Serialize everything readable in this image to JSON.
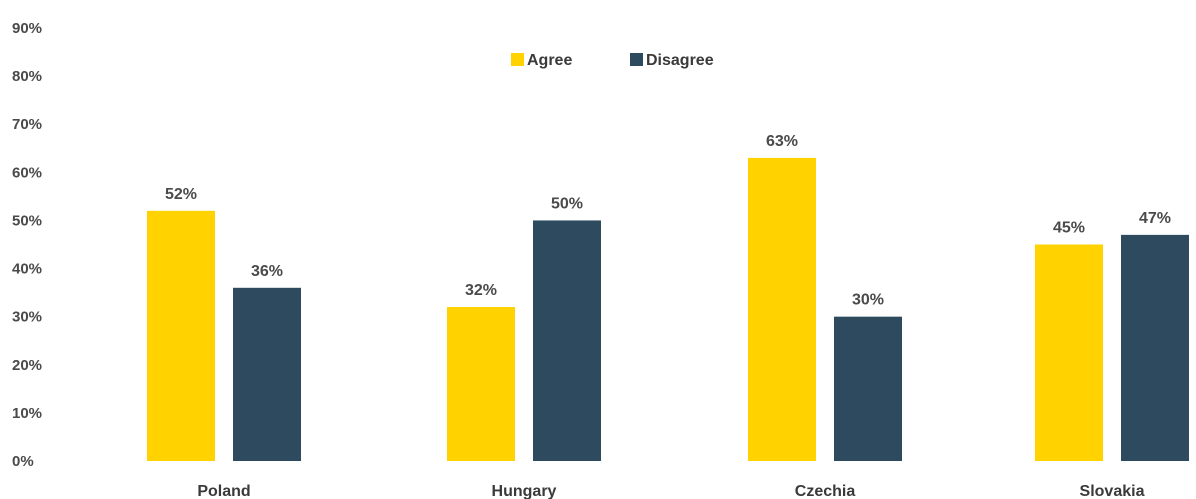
{
  "chart_data": {
    "type": "bar",
    "categories": [
      "Poland",
      "Hungary",
      "Czechia",
      "Slovakia"
    ],
    "series": [
      {
        "name": "Agree",
        "color": "#FFD200",
        "values": [
          52,
          32,
          63,
          45
        ],
        "labels": [
          "52%",
          "32%",
          "63%",
          "45%"
        ]
      },
      {
        "name": "Disagree",
        "color": "#2D4A5E",
        "values": [
          36,
          50,
          30,
          47
        ],
        "labels": [
          "36%",
          "50%",
          "30%",
          "47%"
        ]
      }
    ],
    "ylim": [
      0,
      90
    ],
    "yticks": [
      0,
      10,
      20,
      30,
      40,
      50,
      60,
      70,
      80,
      90
    ],
    "ytick_labels": [
      "0%",
      "10%",
      "20%",
      "30%",
      "40%",
      "50%",
      "60%",
      "70%",
      "80%",
      "90%"
    ],
    "grid": false,
    "legend": "top-center"
  }
}
